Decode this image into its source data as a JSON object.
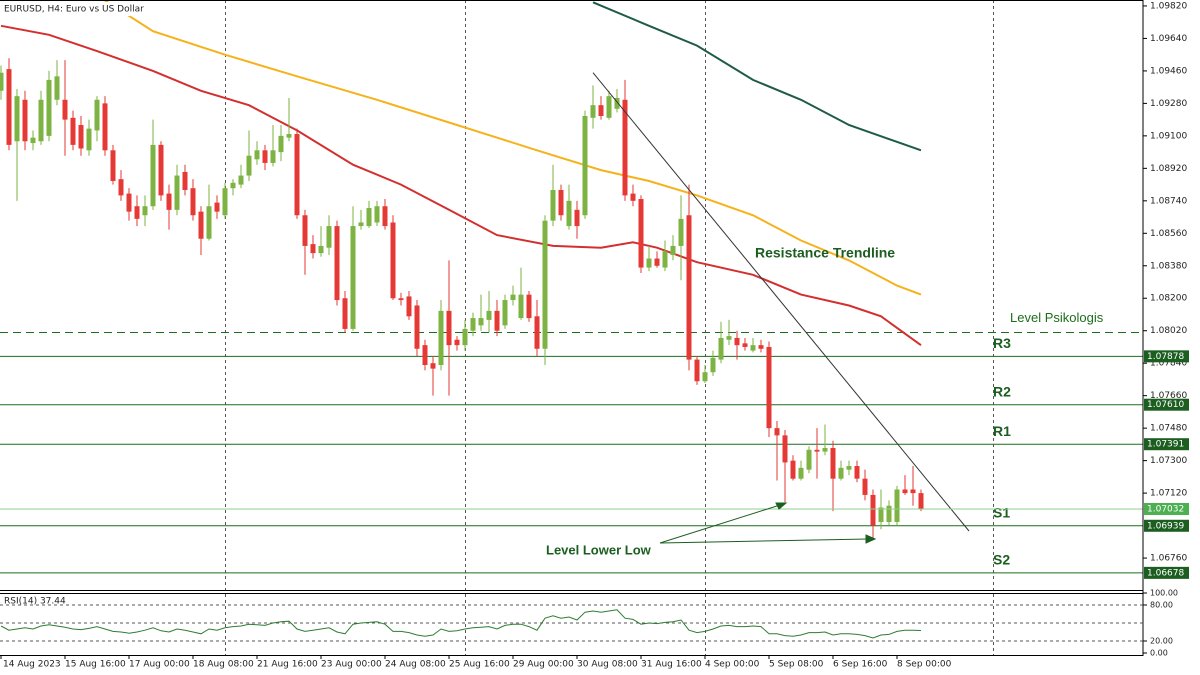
{
  "chart_data": {
    "type": "candlestick",
    "title": "EURUSD, H4:  Euro vs US Dollar",
    "bull_color": "#7cb342",
    "bear_color": "#e53935",
    "xlim": [
      -0.125,
      142.75
    ],
    "ylim": [
      1.06583,
      1.09853
    ],
    "yticks": [
      {
        "value": 1.0982,
        "label": "1.09820"
      },
      {
        "value": 1.0964,
        "label": "1.09640"
      },
      {
        "value": 1.0946,
        "label": "1.09460"
      },
      {
        "value": 1.0928,
        "label": "1.09280"
      },
      {
        "value": 1.091,
        "label": "1.09100"
      },
      {
        "value": 1.0892,
        "label": "1.08920"
      },
      {
        "value": 1.0874,
        "label": "1.08740"
      },
      {
        "value": 1.0856,
        "label": "1.08560"
      },
      {
        "value": 1.0838,
        "label": "1.08380"
      },
      {
        "value": 1.082,
        "label": "1.08200"
      },
      {
        "value": 1.0802,
        "label": "1.08020"
      },
      {
        "value": 1.0784,
        "label": "1.07840"
      },
      {
        "value": 1.0766,
        "label": "1.07660"
      },
      {
        "value": 1.0748,
        "label": "1.07480"
      },
      {
        "value": 1.073,
        "label": "1.07300"
      },
      {
        "value": 1.0712,
        "label": "1.07120"
      },
      {
        "value": 1.0676,
        "label": "1.06760"
      }
    ],
    "categories": [
      "14 Aug 2023",
      null,
      null,
      null,
      null,
      null,
      null,
      null,
      "15 Aug 16:00",
      null,
      null,
      null,
      null,
      null,
      null,
      null,
      "17 Aug 00:00",
      null,
      null,
      null,
      null,
      null,
      null,
      null,
      "18 Aug 08:00",
      null,
      null,
      null,
      null,
      null,
      null,
      null,
      "21 Aug 16:00",
      null,
      null,
      null,
      null,
      null,
      null,
      null,
      "23 Aug 00:00",
      null,
      null,
      null,
      null,
      null,
      null,
      null,
      "24 Aug 08:00",
      null,
      null,
      null,
      null,
      null,
      null,
      null,
      "25 Aug 16:00",
      null,
      null,
      null,
      null,
      null,
      null,
      null,
      "29 Aug 00:00",
      null,
      null,
      null,
      null,
      null,
      null,
      null,
      "30 Aug 08:00",
      null,
      null,
      null,
      null,
      null,
      null,
      null,
      "31 Aug 16:00",
      null,
      null,
      null,
      null,
      null,
      null,
      null,
      "4 Sep 00:00",
      null,
      null,
      null,
      null,
      null,
      null,
      null,
      "5 Sep 08:00",
      null,
      null,
      null,
      null,
      null,
      null,
      null,
      "6 Sep 16:00",
      null,
      null,
      null,
      null,
      null,
      null,
      null,
      "8 Sep 00:00",
      null,
      null,
      null
    ],
    "ohlc": [
      [
        1.0935,
        1.0949,
        1.093,
        1.0945
      ],
      [
        1.0947,
        1.0953,
        1.0902,
        1.0905
      ],
      [
        1.0907,
        1.0936,
        1.0874,
        1.0932
      ],
      [
        1.093,
        1.0935,
        1.0902,
        1.0907
      ],
      [
        1.0906,
        1.0913,
        1.0902,
        1.0909
      ],
      [
        1.0907,
        1.0935,
        1.0905,
        1.093
      ],
      [
        1.091,
        1.0946,
        1.0907,
        1.0941
      ],
      [
        1.093,
        1.0952,
        1.0927,
        1.0943
      ],
      [
        1.093,
        1.0952,
        1.0899,
        1.0919
      ],
      [
        1.092,
        1.0924,
        1.0902,
        1.0905
      ],
      [
        1.0916,
        1.0921,
        1.0899,
        1.0903
      ],
      [
        1.0902,
        1.0919,
        1.0899,
        1.0914
      ],
      [
        1.0913,
        1.0932,
        1.0907,
        1.093
      ],
      [
        1.0928,
        1.0932,
        1.0899,
        1.0902
      ],
      [
        1.0902,
        1.0905,
        1.0883,
        1.0885
      ],
      [
        1.0886,
        1.0891,
        1.0874,
        1.0877
      ],
      [
        1.0878,
        1.0881,
        1.0863,
        1.0868
      ],
      [
        1.0871,
        1.0877,
        1.086,
        1.0864
      ],
      [
        1.0866,
        1.0877,
        1.086,
        1.0871
      ],
      [
        1.0871,
        1.0919,
        1.0869,
        1.0905
      ],
      [
        1.0905,
        1.0907,
        1.0874,
        1.0877
      ],
      [
        1.0878,
        1.0883,
        1.0858,
        1.0869
      ],
      [
        1.0869,
        1.0894,
        1.0866,
        1.0888
      ],
      [
        1.089,
        1.0894,
        1.0877,
        1.088
      ],
      [
        1.0881,
        1.0886,
        1.0863,
        1.0866
      ],
      [
        1.0868,
        1.0871,
        1.0844,
        1.0853
      ],
      [
        1.0853,
        1.0883,
        1.0852,
        1.0871
      ],
      [
        1.0873,
        1.0877,
        1.0864,
        1.0868
      ],
      [
        1.0866,
        1.0884,
        1.0864,
        1.0881
      ],
      [
        1.0881,
        1.0886,
        1.0877,
        1.0884
      ],
      [
        1.0883,
        1.0894,
        1.0881,
        1.0888
      ],
      [
        1.0888,
        1.0913,
        1.0885,
        1.0899
      ],
      [
        1.0897,
        1.0907,
        1.0894,
        1.0902
      ],
      [
        1.0902,
        1.0905,
        1.0891,
        1.0895
      ],
      [
        1.0895,
        1.0916,
        1.0893,
        1.0902
      ],
      [
        1.0901,
        1.0916,
        1.0896,
        1.091
      ],
      [
        1.0909,
        1.0931,
        1.0907,
        1.0911
      ],
      [
        1.0911,
        1.0914,
        1.0864,
        1.0866
      ],
      [
        1.0866,
        1.0869,
        1.0833,
        1.0849
      ],
      [
        1.085,
        1.0855,
        1.0842,
        1.0845
      ],
      [
        1.0845,
        1.086,
        1.0843,
        1.0849
      ],
      [
        1.0848,
        1.0866,
        1.0844,
        1.086
      ],
      [
        1.086,
        1.0863,
        1.0816,
        1.0819
      ],
      [
        1.082,
        1.0824,
        1.0801,
        1.0803
      ],
      [
        1.0803,
        1.0871,
        1.0802,
        1.086
      ],
      [
        1.086,
        1.0869,
        1.0858,
        1.0862
      ],
      [
        1.086,
        1.0874,
        1.0859,
        1.087
      ],
      [
        1.0862,
        1.0874,
        1.086,
        1.0871
      ],
      [
        1.0871,
        1.0875,
        1.0858,
        1.086
      ],
      [
        1.0862,
        1.0866,
        1.0819,
        1.082
      ],
      [
        1.082,
        1.0823,
        1.0816,
        1.0819
      ],
      [
        1.0821,
        1.0824,
        1.0808,
        1.081
      ],
      [
        1.0816,
        1.0819,
        1.0788,
        1.0792
      ],
      [
        1.0794,
        1.0797,
        1.078,
        1.0783
      ],
      [
        1.0784,
        1.0788,
        1.0766,
        1.0781
      ],
      [
        1.0783,
        1.0819,
        1.078,
        1.0813
      ],
      [
        1.0813,
        1.0841,
        1.0766,
        1.0794
      ],
      [
        1.0797,
        1.0799,
        1.0791,
        1.0794
      ],
      [
        1.0794,
        1.0808,
        1.0791,
        1.0803
      ],
      [
        1.0802,
        1.0812,
        1.0799,
        1.0809
      ],
      [
        1.0805,
        1.0822,
        1.0802,
        1.0809
      ],
      [
        1.0808,
        1.0824,
        1.0801,
        1.0813
      ],
      [
        1.0813,
        1.0819,
        1.0799,
        1.0802
      ],
      [
        1.0805,
        1.0822,
        1.0803,
        1.0819
      ],
      [
        1.0819,
        1.0827,
        1.0816,
        1.0822
      ],
      [
        1.0809,
        1.0837,
        1.0808,
        1.0822
      ],
      [
        1.0822,
        1.0824,
        1.0807,
        1.0809
      ],
      [
        1.081,
        1.0819,
        1.0788,
        1.0792
      ],
      [
        1.0792,
        1.0866,
        1.0783,
        1.0863
      ],
      [
        1.0863,
        1.0894,
        1.086,
        1.088
      ],
      [
        1.088,
        1.0883,
        1.0863,
        1.0866
      ],
      [
        1.086,
        1.0883,
        1.0858,
        1.0874
      ],
      [
        1.0869,
        1.0874,
        1.0853,
        1.086
      ],
      [
        1.0866,
        1.0924,
        1.0864,
        1.0921
      ],
      [
        1.092,
        1.0938,
        1.0914,
        1.0927
      ],
      [
        1.0927,
        1.0932,
        1.0919,
        1.0921
      ],
      [
        1.092,
        1.0935,
        1.0919,
        1.0932
      ],
      [
        1.0925,
        1.0936,
        1.0923,
        1.0931
      ],
      [
        1.093,
        1.0941,
        1.0874,
        1.0877
      ],
      [
        1.0878,
        1.0883,
        1.0871,
        1.0874
      ],
      [
        1.0875,
        1.0877,
        1.0834,
        1.0837
      ],
      [
        1.0837,
        1.0849,
        1.0835,
        1.0842
      ],
      [
        1.0842,
        1.0846,
        1.0837,
        1.0838
      ],
      [
        1.0837,
        1.0852,
        1.0835,
        1.0846
      ],
      [
        1.0844,
        1.0855,
        1.0841,
        1.0849
      ],
      [
        1.0849,
        1.0877,
        1.083,
        1.0864
      ],
      [
        1.0866,
        1.0883,
        1.078,
        1.0786
      ],
      [
        1.0786,
        1.0788,
        1.0772,
        1.0774
      ],
      [
        1.0774,
        1.0783,
        1.0773,
        1.0779
      ],
      [
        1.0779,
        1.0791,
        1.0777,
        1.0787
      ],
      [
        1.0786,
        1.0807,
        1.0784,
        1.0798
      ],
      [
        1.0797,
        1.0808,
        1.0794,
        1.0799
      ],
      [
        1.0798,
        1.0802,
        1.0786,
        1.0794
      ],
      [
        1.0795,
        1.0798,
        1.0791,
        1.0793
      ],
      [
        1.0791,
        1.0798,
        1.079,
        1.0794
      ],
      [
        1.0794,
        1.0797,
        1.079,
        1.0792
      ],
      [
        1.0793,
        1.0796,
        1.0743,
        1.0748
      ],
      [
        1.0748,
        1.0752,
        1.0719,
        1.0744
      ],
      [
        1.0744,
        1.0747,
        1.0707,
        1.0729
      ],
      [
        1.073,
        1.0733,
        1.0719,
        1.072
      ],
      [
        1.072,
        1.073,
        1.0719,
        1.0726
      ],
      [
        1.0725,
        1.0738,
        1.0723,
        1.0736
      ],
      [
        1.0736,
        1.0748,
        1.072,
        1.0735
      ],
      [
        1.0735,
        1.075,
        1.0733,
        1.0737
      ],
      [
        1.0737,
        1.0741,
        1.0702,
        1.072
      ],
      [
        1.072,
        1.073,
        1.0719,
        1.0726
      ],
      [
        1.0725,
        1.073,
        1.0722,
        1.0727
      ],
      [
        1.0727,
        1.073,
        1.0718,
        1.072
      ],
      [
        1.072,
        1.0725,
        1.0708,
        1.0711
      ],
      [
        1.0711,
        1.0714,
        1.0686,
        1.0694
      ],
      [
        1.0696,
        1.0714,
        1.0692,
        1.0704
      ],
      [
        1.0696,
        1.0708,
        1.0694,
        1.0705
      ],
      [
        1.0696,
        1.0716,
        1.0694,
        1.0714
      ],
      [
        1.0714,
        1.0722,
        1.0711,
        1.0712
      ],
      [
        1.0714,
        1.0727,
        1.0705,
        1.0712
      ],
      [
        1.0712,
        1.0714,
        1.0702,
        1.0703
      ]
    ],
    "lines": [
      {
        "color": "#d32f2f",
        "x": [
          0,
          6,
          12,
          19,
          25,
          31,
          37,
          44,
          50,
          56,
          62,
          69,
          75,
          79,
          82,
          87,
          94,
          100,
          106,
          110,
          115
        ],
        "values": [
          1.0971,
          1.0966,
          1.0957,
          1.0946,
          1.0935,
          1.0927,
          1.0913,
          1.0894,
          1.0883,
          1.0869,
          1.0855,
          1.0849,
          1.0848,
          1.0851,
          1.0848,
          1.084,
          1.0833,
          1.0822,
          1.0816,
          1.081,
          1.0794
        ]
      },
      {
        "color": "#f5b21b",
        "x": [
          13,
          19,
          28,
          37,
          47,
          57,
          67,
          75,
          81,
          87,
          94,
          100,
          106,
          112,
          115
        ],
        "values": [
          1.0985,
          1.0968,
          1.0955,
          1.0943,
          1.093,
          1.0916,
          1.0902,
          1.0891,
          1.0885,
          1.0877,
          1.0866,
          1.0852,
          1.0841,
          1.0827,
          1.0822
        ]
      },
      {
        "color": "#1e5b4a",
        "x": [
          74,
          81,
          87,
          94,
          100,
          106,
          115
        ],
        "values": [
          1.0984,
          1.0971,
          1.096,
          1.0941,
          1.093,
          1.0916,
          1.0902
        ]
      }
    ],
    "trendline": {
      "label": "Resistance Trendline",
      "x": [
        74,
        121
      ],
      "values": [
        1.0945,
        1.0691
      ]
    },
    "psych_level": {
      "label": "Level Psikologis",
      "value": 1.0801
    },
    "levels": [
      {
        "name": "R3",
        "value": 1.07878,
        "price_label": "1.07878"
      },
      {
        "name": "R2",
        "value": 1.0761,
        "price_label": "1.07610"
      },
      {
        "name": "R1",
        "value": 1.07391,
        "price_label": "1.07391"
      },
      {
        "name": "S1",
        "value": 1.06939,
        "price_label": "1.06939"
      },
      {
        "name": "S2",
        "value": 1.06678,
        "price_label": "1.06678"
      }
    ],
    "bid": {
      "value": 1.07032,
      "price_label": "1.07032"
    },
    "annotation": "Level Lower Low",
    "period_separators": [
      28,
      58,
      88,
      124
    ],
    "rsi": {
      "label": "RSI(14) 37.44",
      "ylim": [
        0,
        100
      ],
      "yticks": [
        {
          "value": 100,
          "label": "100.00"
        },
        {
          "value": 80,
          "label": "80.00"
        },
        {
          "value": 20,
          "label": "20.00"
        },
        {
          "value": 0,
          "label": "0.00"
        }
      ],
      "levels": [
        80,
        50,
        20
      ],
      "values": [
        45,
        38,
        40,
        42,
        40,
        45,
        47,
        45,
        43,
        40,
        39,
        41,
        44,
        40,
        36,
        35,
        33,
        35,
        38,
        42,
        37,
        35,
        40,
        38,
        35,
        32,
        40,
        38,
        42,
        44,
        45,
        48,
        47,
        46,
        50,
        52,
        53,
        40,
        36,
        38,
        40,
        42,
        35,
        32,
        48,
        50,
        51,
        52,
        48,
        36,
        36,
        34,
        30,
        28,
        30,
        40,
        36,
        37,
        40,
        42,
        43,
        44,
        40,
        46,
        48,
        48,
        44,
        38,
        58,
        62,
        58,
        60,
        55,
        68,
        70,
        68,
        70,
        72,
        58,
        56,
        48,
        50,
        49,
        51,
        52,
        55,
        38,
        34,
        36,
        40,
        45,
        46,
        44,
        44,
        45,
        44,
        32,
        32,
        29,
        28,
        30,
        34,
        34,
        35,
        30,
        32,
        32,
        31,
        29,
        25,
        30,
        31,
        36,
        38,
        38,
        37.44
      ]
    }
  }
}
